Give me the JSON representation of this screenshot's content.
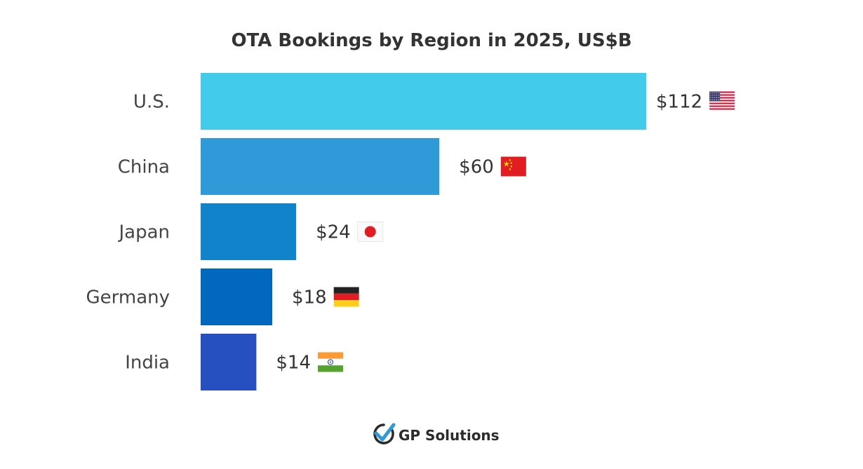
{
  "chart_data": {
    "type": "bar",
    "orientation": "horizontal",
    "title": "OTA Bookings by Region in 2025, US$B",
    "xlabel": "",
    "ylabel": "",
    "grid": false,
    "categories": [
      "U.S.",
      "China",
      "Japan",
      "Germany",
      "India"
    ],
    "values": [
      112,
      60,
      24,
      18,
      14
    ],
    "value_labels": [
      "$112",
      "$60",
      "$24",
      "$18",
      "$14"
    ],
    "flags": [
      "us-flag-icon",
      "china-flag-icon",
      "japan-flag-icon",
      "germany-flag-icon",
      "india-flag-icon"
    ],
    "colors": [
      "#42cbea",
      "#2e9ad8",
      "#1083cc",
      "#0069bf",
      "#264fbf"
    ]
  },
  "branding": {
    "logo_text": "GP Solutions",
    "logo_colors": {
      "check": "#2e9ad8",
      "ring": "#2b2b2b"
    }
  }
}
